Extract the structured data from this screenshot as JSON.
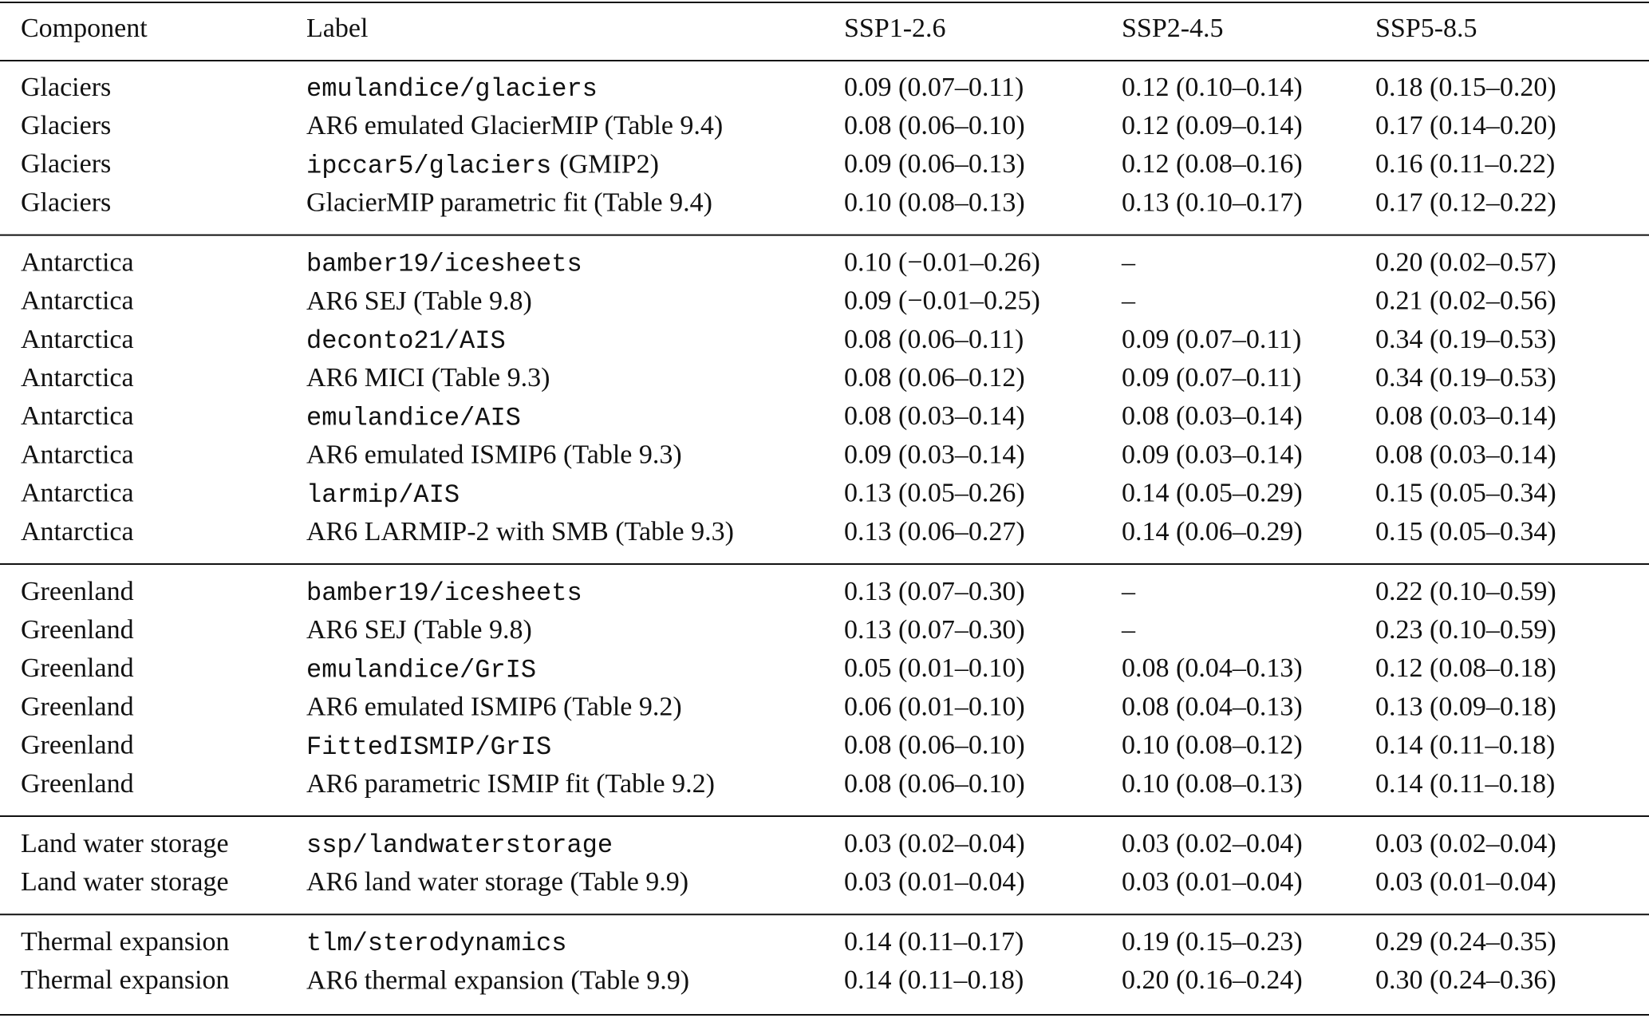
{
  "table": {
    "header": [
      "Component",
      "Label",
      "SSP1-2.6",
      "SSP2-4.5",
      "SSP5-8.5"
    ],
    "groups": [
      {
        "rows": [
          {
            "component": "Glaciers",
            "label": "emulandice/glaciers",
            "mono": true,
            "values": [
              "0.09 (0.07–0.11)",
              "0.12 (0.10–0.14)",
              "0.18 (0.15–0.20)"
            ]
          },
          {
            "component": "Glaciers",
            "label": "AR6 emulated GlacierMIP (Table 9.4)",
            "mono": false,
            "values": [
              "0.08 (0.06–0.10)",
              "0.12 (0.09–0.14)",
              "0.17 (0.14–0.20)"
            ]
          },
          {
            "component": "Glaciers",
            "label": "ipccar5/glaciers",
            "note": "(GMIP2)",
            "mono": true,
            "values": [
              "0.09 (0.06–0.13)",
              "0.12 (0.08–0.16)",
              "0.16 (0.11–0.22)"
            ]
          },
          {
            "component": "Glaciers",
            "label": "GlacierMIP parametric fit (Table 9.4)",
            "mono": false,
            "values": [
              "0.10 (0.08–0.13)",
              "0.13 (0.10–0.17)",
              "0.17 (0.12–0.22)"
            ]
          }
        ]
      },
      {
        "rows": [
          {
            "component": "Antarctica",
            "label": "bamber19/icesheets",
            "mono": true,
            "values": [
              "0.10 (−0.01–0.26)",
              "–",
              "0.20 (0.02–0.57)"
            ]
          },
          {
            "component": "Antarctica",
            "label": "AR6 SEJ (Table 9.8)",
            "mono": false,
            "values": [
              "0.09 (−0.01–0.25)",
              "–",
              "0.21 (0.02–0.56)"
            ]
          },
          {
            "component": "Antarctica",
            "label": "deconto21/AIS",
            "mono": true,
            "values": [
              "0.08 (0.06–0.11)",
              "0.09 (0.07–0.11)",
              "0.34 (0.19–0.53)"
            ]
          },
          {
            "component": "Antarctica",
            "label": "AR6 MICI (Table 9.3)",
            "mono": false,
            "values": [
              "0.08 (0.06–0.12)",
              "0.09 (0.07–0.11)",
              "0.34 (0.19–0.53)"
            ]
          },
          {
            "component": "Antarctica",
            "label": "emulandice/AIS",
            "mono": true,
            "values": [
              "0.08 (0.03–0.14)",
              "0.08 (0.03–0.14)",
              "0.08 (0.03–0.14)"
            ]
          },
          {
            "component": "Antarctica",
            "label": "AR6 emulated ISMIP6 (Table 9.3)",
            "mono": false,
            "values": [
              "0.09 (0.03–0.14)",
              "0.09 (0.03–0.14)",
              "0.08 (0.03–0.14)"
            ]
          },
          {
            "component": "Antarctica",
            "label": "larmip/AIS",
            "mono": true,
            "values": [
              "0.13 (0.05–0.26)",
              "0.14 (0.05–0.29)",
              "0.15 (0.05–0.34)"
            ]
          },
          {
            "component": "Antarctica",
            "label": "AR6 LARMIP-2 with SMB (Table 9.3)",
            "mono": false,
            "values": [
              "0.13 (0.06–0.27)",
              "0.14 (0.06–0.29)",
              "0.15 (0.05–0.34)"
            ]
          }
        ]
      },
      {
        "rows": [
          {
            "component": "Greenland",
            "label": "bamber19/icesheets",
            "mono": true,
            "values": [
              "0.13 (0.07–0.30)",
              "–",
              "0.22 (0.10–0.59)"
            ]
          },
          {
            "component": "Greenland",
            "label": "AR6 SEJ (Table 9.8)",
            "mono": false,
            "values": [
              "0.13 (0.07–0.30)",
              "–",
              "0.23 (0.10–0.59)"
            ]
          },
          {
            "component": "Greenland",
            "label": "emulandice/GrIS",
            "mono": true,
            "values": [
              "0.05 (0.01–0.10)",
              "0.08 (0.04–0.13)",
              "0.12 (0.08–0.18)"
            ]
          },
          {
            "component": "Greenland",
            "label": "AR6 emulated ISMIP6 (Table 9.2)",
            "mono": false,
            "values": [
              "0.06 (0.01–0.10)",
              "0.08 (0.04–0.13)",
              "0.13 (0.09–0.18)"
            ]
          },
          {
            "component": "Greenland",
            "label": "FittedISMIP/GrIS",
            "mono": true,
            "values": [
              "0.08 (0.06–0.10)",
              "0.10 (0.08–0.12)",
              "0.14 (0.11–0.18)"
            ]
          },
          {
            "component": "Greenland",
            "label": "AR6 parametric ISMIP fit (Table 9.2)",
            "mono": false,
            "values": [
              "0.08 (0.06–0.10)",
              "0.10 (0.08–0.13)",
              "0.14 (0.11–0.18)"
            ]
          }
        ]
      },
      {
        "rows": [
          {
            "component": "Land water storage",
            "label": "ssp/landwaterstorage",
            "mono": true,
            "values": [
              "0.03 (0.02–0.04)",
              "0.03 (0.02–0.04)",
              "0.03 (0.02–0.04)"
            ]
          },
          {
            "component": "Land water storage",
            "label": "AR6 land water storage (Table 9.9)",
            "mono": false,
            "values": [
              "0.03 (0.01–0.04)",
              "0.03 (0.01–0.04)",
              "0.03 (0.01–0.04)"
            ]
          }
        ]
      },
      {
        "rows": [
          {
            "component": "Thermal expansion",
            "label": "tlm/sterodynamics",
            "mono": true,
            "values": [
              "0.14 (0.11–0.17)",
              "0.19 (0.15–0.23)",
              "0.29 (0.24–0.35)"
            ]
          },
          {
            "component": "Thermal expansion",
            "label": "AR6 thermal expansion (Table 9.9)",
            "mono": false,
            "values": [
              "0.14 (0.11–0.18)",
              "0.20 (0.16–0.24)",
              "0.30 (0.24–0.36)"
            ]
          }
        ]
      }
    ]
  }
}
